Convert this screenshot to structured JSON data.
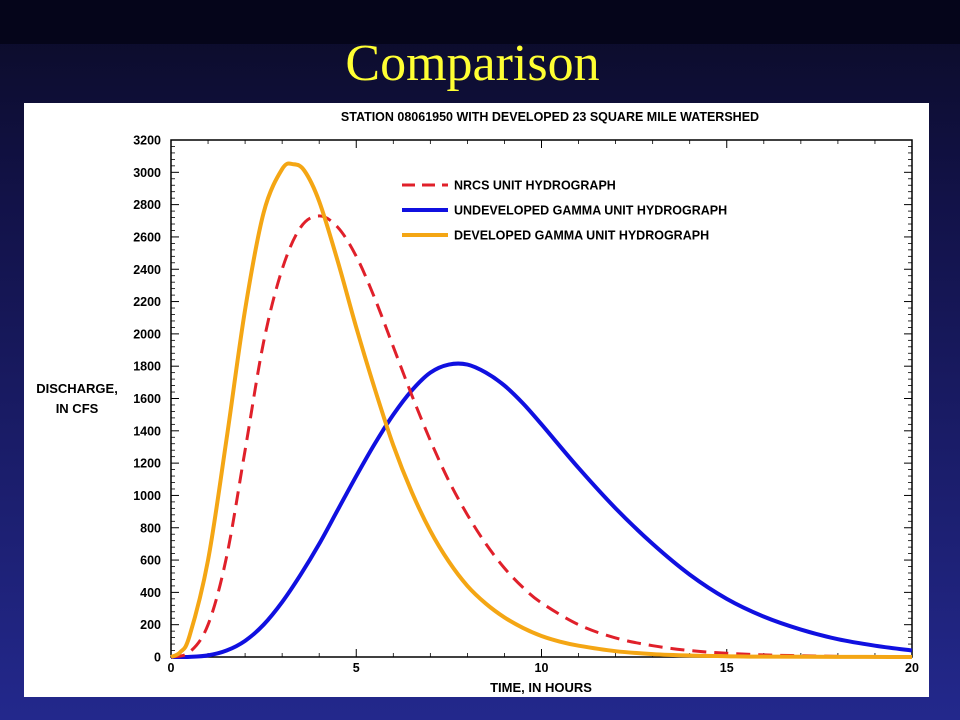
{
  "slide": {
    "title": "Comparison",
    "title_color": "#ffff33",
    "background": "#1a1f6e"
  },
  "chart_data": {
    "type": "line",
    "title": "STATION 08061950 WITH DEVELOPED 23 SQUARE MILE WATERSHED",
    "xlabel": "TIME, IN HOURS",
    "ylabel": [
      "DISCHARGE,",
      "IN CFS"
    ],
    "xlim": [
      0,
      20
    ],
    "ylim": [
      0,
      3200
    ],
    "xticks": [
      0,
      5,
      10,
      15,
      20
    ],
    "yticks": [
      0,
      200,
      400,
      600,
      800,
      1000,
      1200,
      1400,
      1600,
      1800,
      2000,
      2200,
      2400,
      2600,
      2800,
      3000,
      3200
    ],
    "legend_position": "top-right",
    "grid": false,
    "series": [
      {
        "name": "NRCS UNIT HYDROGRAPH",
        "color": "#e0202a",
        "style": "dashed",
        "x": [
          0,
          0.5,
          1,
          1.5,
          2,
          2.5,
          3,
          3.5,
          4,
          4.5,
          5,
          5.5,
          6,
          6.5,
          7,
          7.5,
          8,
          8.5,
          9,
          9.5,
          10,
          11,
          12,
          13,
          14,
          15,
          16,
          17,
          18,
          19,
          20
        ],
        "y": [
          0,
          30,
          200,
          620,
          1280,
          1950,
          2400,
          2660,
          2730,
          2660,
          2480,
          2220,
          1920,
          1620,
          1340,
          1090,
          880,
          700,
          550,
          430,
          335,
          200,
          118,
          70,
          40,
          23,
          13,
          8,
          4,
          2,
          1
        ]
      },
      {
        "name": "UNDEVELOPED GAMMA UNIT HYDROGRAPH",
        "color": "#1010e0",
        "style": "solid",
        "x": [
          0,
          0.5,
          1,
          1.5,
          2,
          2.5,
          3,
          3.5,
          4,
          4.5,
          5,
          5.5,
          6,
          6.5,
          7,
          7.5,
          8,
          8.5,
          9,
          9.5,
          10,
          11,
          12,
          13,
          14,
          15,
          16,
          17,
          18,
          19,
          20
        ],
        "y": [
          0,
          1,
          10,
          40,
          100,
          200,
          340,
          510,
          700,
          910,
          1120,
          1320,
          1500,
          1650,
          1760,
          1810,
          1810,
          1760,
          1680,
          1570,
          1440,
          1170,
          920,
          700,
          510,
          360,
          250,
          170,
          110,
          70,
          40
        ]
      },
      {
        "name": "DEVELOPED GAMMA UNIT HYDROGRAPH",
        "color": "#f4a614",
        "style": "solid",
        "x": [
          0,
          0.25,
          0.5,
          1,
          1.5,
          2,
          2.5,
          3,
          3.3,
          3.6,
          4,
          4.5,
          5,
          5.5,
          6,
          6.5,
          7,
          7.5,
          8,
          8.5,
          9,
          9.5,
          10,
          10.5,
          11,
          12,
          13,
          14,
          15,
          16,
          18,
          20
        ],
        "y": [
          0,
          30,
          130,
          600,
          1350,
          2150,
          2750,
          3020,
          3050,
          3010,
          2820,
          2450,
          2040,
          1660,
          1310,
          1020,
          780,
          590,
          440,
          330,
          245,
          180,
          130,
          95,
          70,
          36,
          18,
          9,
          5,
          2,
          1,
          0
        ]
      }
    ]
  }
}
